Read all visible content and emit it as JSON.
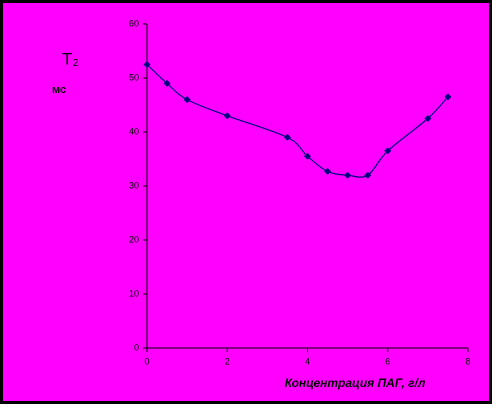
{
  "chart_data": {
    "type": "scatter",
    "ylabel": "T₂",
    "yunit": "мс",
    "xlabel": "Концентрация ПАГ, г/л",
    "x": [
      0,
      0.5,
      1,
      2,
      3.5,
      4,
      4.5,
      5,
      5.5,
      6,
      7,
      7.5
    ],
    "values": [
      52.5,
      49,
      46,
      43,
      39,
      35.5,
      32.7,
      32,
      32,
      36.5,
      42.5,
      46.5
    ],
    "color": "#000080",
    "line_color": "#000080",
    "xlim": [
      0,
      8
    ],
    "xticks": [
      0,
      2,
      4,
      6,
      8
    ],
    "ylim": [
      0,
      60
    ],
    "yticks": [
      0,
      10,
      20,
      30,
      40,
      50,
      60
    ]
  }
}
